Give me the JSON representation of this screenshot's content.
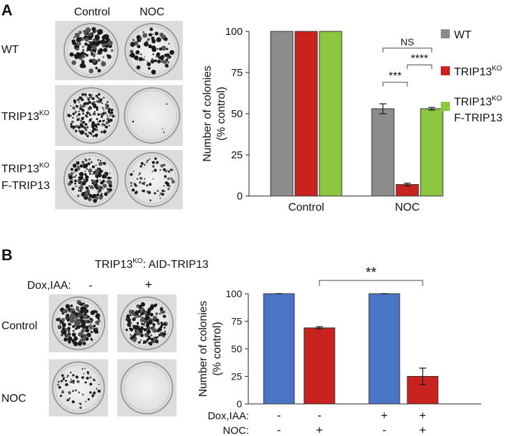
{
  "panel_a": {
    "letter": "A",
    "col_labels": [
      "Control",
      "NOC"
    ],
    "row_labels": [
      {
        "main": "WT",
        "sup": "",
        "line2": ""
      },
      {
        "main": "TRIP13",
        "sup": "KO",
        "line2": ""
      },
      {
        "main": "TRIP13",
        "sup": "KO",
        "line2": "F-TRIP13"
      }
    ]
  },
  "panel_b": {
    "letter": "B",
    "header_main": "TRIP13",
    "header_sup": "KO",
    "header_rest": ": AID-TRIP13",
    "dox_label": "Dox,IAA:",
    "dox_values": [
      "-",
      "+"
    ],
    "row_labels": [
      "Control",
      "NOC"
    ]
  },
  "chart_data": [
    {
      "type": "bar",
      "categories": [
        "Control",
        "NOC"
      ],
      "ylabel": [
        "Number of colonies",
        "(% control)"
      ],
      "ylim": [
        0,
        100
      ],
      "yticks": [
        0,
        25,
        50,
        75,
        100
      ],
      "series": [
        {
          "name": "WT",
          "name_sup": "",
          "name_line2": "",
          "color": "#8c8c8c",
          "values": [
            100,
            53
          ],
          "errors": [
            0,
            3
          ]
        },
        {
          "name": "TRIP13",
          "name_sup": "KO",
          "name_line2": "",
          "color": "#c8231e",
          "values": [
            100,
            7
          ],
          "errors": [
            0,
            0.8
          ]
        },
        {
          "name": "TRIP13",
          "name_sup": "KO",
          "name_line2": "F-TRIP13",
          "color": "#8dc63f",
          "values": [
            100,
            53
          ],
          "errors": [
            0,
            0.8
          ]
        }
      ],
      "annotations": [
        "NS",
        "****",
        "***"
      ],
      "legend": "right"
    },
    {
      "type": "bar",
      "categories": [
        "-/-",
        "-/+",
        "+/-",
        "+/+"
      ],
      "ylabel": [
        "Number of colonies",
        "(% control)"
      ],
      "ylim": [
        0,
        100
      ],
      "yticks": [
        0,
        25,
        50,
        75,
        100
      ],
      "values": [
        100,
        69,
        100,
        25
      ],
      "errors": [
        0,
        1,
        0,
        7.5
      ],
      "colors": [
        "#4a74c6",
        "#c8231e",
        "#4a74c6",
        "#c8231e"
      ],
      "row_labels": [
        "Dox,IAA:",
        "NOC:"
      ],
      "dox_iaa": [
        "-",
        "-",
        "+",
        "+"
      ],
      "noc": [
        "-",
        "+",
        "-",
        "+"
      ],
      "annotations": [
        "**"
      ]
    }
  ]
}
